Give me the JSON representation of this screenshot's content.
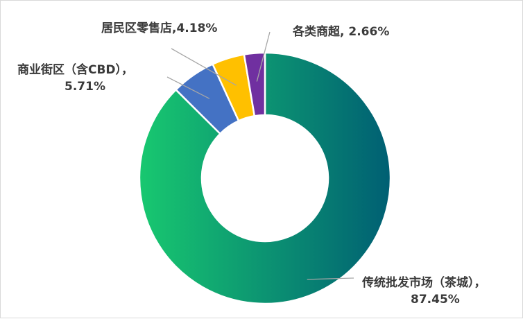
{
  "chart_data": {
    "type": "pie",
    "donut": true,
    "slices": [
      {
        "name": "传统批发市场（茶城）",
        "value": 87.45,
        "label_line1": "传统批发市场（茶城），",
        "label_line2": "87.45%"
      },
      {
        "name": "商业街区（含CBD）",
        "value": 5.71,
        "label_line1": "商业街区（含CBD），",
        "label_line2": "5.71%"
      },
      {
        "name": "居民区零售店",
        "value": 4.18,
        "label_line1": "居民区零售店,4.18%",
        "label_line2": ""
      },
      {
        "name": "各类商超",
        "value": 2.66,
        "label_line1": "各类商超, 2.66%",
        "label_line2": ""
      }
    ],
    "colors": [
      "#18c870",
      "#4472c4",
      "#ffc000",
      "#7030a0"
    ],
    "gradient_end": "#005f73",
    "legend": "none"
  }
}
